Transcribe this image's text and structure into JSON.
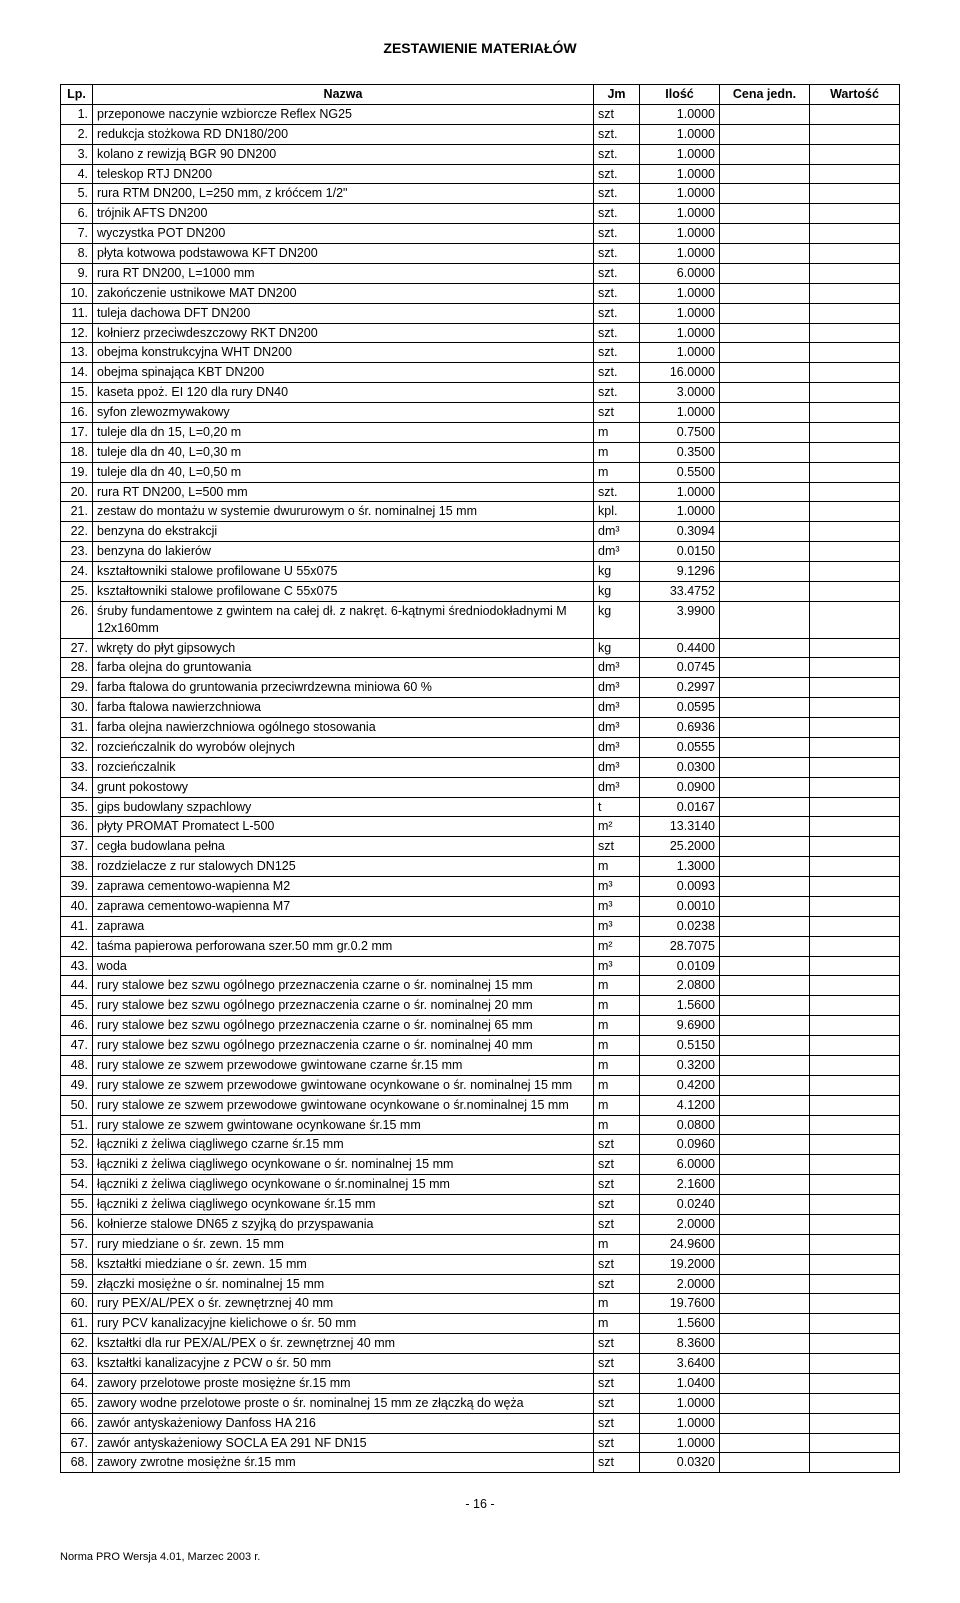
{
  "title": "ZESTAWIENIE MATERIAŁÓW",
  "columns": {
    "lp": "Lp.",
    "name": "Nazwa",
    "jm": "Jm",
    "qty": "Ilość",
    "price": "Cena jedn.",
    "val": "Wartość"
  },
  "page_number": "- 16 -",
  "footer": "Norma PRO Wersja 4.01, Marzec 2003 r.",
  "rows": [
    {
      "lp": "1.",
      "name": "przeponowe naczynie wzbiorcze Reflex NG25",
      "jm": "szt",
      "qty": "1.0000"
    },
    {
      "lp": "2.",
      "name": "redukcja stożkowa RD DN180/200",
      "jm": "szt.",
      "qty": "1.0000"
    },
    {
      "lp": "3.",
      "name": "kolano z rewizją BGR 90 DN200",
      "jm": "szt.",
      "qty": "1.0000"
    },
    {
      "lp": "4.",
      "name": "teleskop RTJ DN200",
      "jm": "szt.",
      "qty": "1.0000"
    },
    {
      "lp": "5.",
      "name": "rura RTM DN200, L=250 mm, z króćcem 1/2\"",
      "jm": "szt.",
      "qty": "1.0000"
    },
    {
      "lp": "6.",
      "name": "trójnik AFTS DN200",
      "jm": "szt.",
      "qty": "1.0000"
    },
    {
      "lp": "7.",
      "name": "wyczystka POT DN200",
      "jm": "szt.",
      "qty": "1.0000"
    },
    {
      "lp": "8.",
      "name": "płyta kotwowa podstawowa KFT DN200",
      "jm": "szt.",
      "qty": "1.0000"
    },
    {
      "lp": "9.",
      "name": "rura RT DN200, L=1000 mm",
      "jm": "szt.",
      "qty": "6.0000"
    },
    {
      "lp": "10.",
      "name": "zakończenie ustnikowe MAT DN200",
      "jm": "szt.",
      "qty": "1.0000"
    },
    {
      "lp": "11.",
      "name": "tuleja dachowa DFT DN200",
      "jm": "szt.",
      "qty": "1.0000"
    },
    {
      "lp": "12.",
      "name": "kołnierz przeciwdeszczowy RKT DN200",
      "jm": "szt.",
      "qty": "1.0000"
    },
    {
      "lp": "13.",
      "name": "obejma konstrukcyjna WHT DN200",
      "jm": "szt.",
      "qty": "1.0000"
    },
    {
      "lp": "14.",
      "name": "obejma spinająca KBT DN200",
      "jm": "szt.",
      "qty": "16.0000"
    },
    {
      "lp": "15.",
      "name": "kaseta ppoż. EI 120 dla rury DN40",
      "jm": "szt.",
      "qty": "3.0000"
    },
    {
      "lp": "16.",
      "name": "syfon zlewozmywakowy",
      "jm": "szt",
      "qty": "1.0000"
    },
    {
      "lp": "17.",
      "name": "tuleje dla dn 15, L=0,20 m",
      "jm": "m",
      "qty": "0.7500"
    },
    {
      "lp": "18.",
      "name": "tuleje dla dn 40, L=0,30 m",
      "jm": "m",
      "qty": "0.3500"
    },
    {
      "lp": "19.",
      "name": "tuleje dla dn 40, L=0,50 m",
      "jm": "m",
      "qty": "0.5500"
    },
    {
      "lp": "20.",
      "name": "rura RT DN200, L=500 mm",
      "jm": "szt.",
      "qty": "1.0000"
    },
    {
      "lp": "21.",
      "name": "zestaw do montażu w systemie dwururowym o śr. nominalnej 15 mm",
      "jm": "kpl.",
      "qty": "1.0000"
    },
    {
      "lp": "22.",
      "name": "benzyna do ekstrakcji",
      "jm": "dm³",
      "qty": "0.3094"
    },
    {
      "lp": "23.",
      "name": "benzyna do lakierów",
      "jm": "dm³",
      "qty": "0.0150"
    },
    {
      "lp": "24.",
      "name": "kształtowniki stalowe profilowane U 55x075",
      "jm": "kg",
      "qty": "9.1296"
    },
    {
      "lp": "25.",
      "name": "kształtowniki stalowe profilowane C 55x075",
      "jm": "kg",
      "qty": "33.4752"
    },
    {
      "lp": "26.",
      "name": "śruby fundamentowe z gwintem na całej dł. z nakręt. 6-kątnymi średniodokładnymi M 12x160mm",
      "jm": "kg",
      "qty": "3.9900"
    },
    {
      "lp": "27.",
      "name": "wkręty do płyt gipsowych",
      "jm": "kg",
      "qty": "0.4400"
    },
    {
      "lp": "28.",
      "name": "farba olejna do gruntowania",
      "jm": "dm³",
      "qty": "0.0745"
    },
    {
      "lp": "29.",
      "name": "farba ftalowa do gruntowania przeciwrdzewna miniowa 60 %",
      "jm": "dm³",
      "qty": "0.2997"
    },
    {
      "lp": "30.",
      "name": "farba ftalowa nawierzchniowa",
      "jm": "dm³",
      "qty": "0.0595"
    },
    {
      "lp": "31.",
      "name": "farba olejna nawierzchniowa ogólnego stosowania",
      "jm": "dm³",
      "qty": "0.6936"
    },
    {
      "lp": "32.",
      "name": "rozcieńczalnik do wyrobów olejnych",
      "jm": "dm³",
      "qty": "0.0555"
    },
    {
      "lp": "33.",
      "name": "rozcieńczalnik",
      "jm": "dm³",
      "qty": "0.0300"
    },
    {
      "lp": "34.",
      "name": "grunt pokostowy",
      "jm": "dm³",
      "qty": "0.0900"
    },
    {
      "lp": "35.",
      "name": "gips budowlany szpachlowy",
      "jm": "t",
      "qty": "0.0167"
    },
    {
      "lp": "36.",
      "name": "płyty PROMAT Promatect L-500",
      "jm": "m²",
      "qty": "13.3140"
    },
    {
      "lp": "37.",
      "name": "cegła budowlana pełna",
      "jm": "szt",
      "qty": "25.2000"
    },
    {
      "lp": "38.",
      "name": "rozdzielacze z rur stalowych DN125",
      "jm": "m",
      "qty": "1.3000"
    },
    {
      "lp": "39.",
      "name": "zaprawa cementowo-wapienna M2",
      "jm": "m³",
      "qty": "0.0093"
    },
    {
      "lp": "40.",
      "name": "zaprawa cementowo-wapienna M7",
      "jm": "m³",
      "qty": "0.0010"
    },
    {
      "lp": "41.",
      "name": "zaprawa",
      "jm": "m³",
      "qty": "0.0238"
    },
    {
      "lp": "42.",
      "name": "taśma papierowa perforowana szer.50 mm gr.0.2 mm",
      "jm": "m²",
      "qty": "28.7075"
    },
    {
      "lp": "43.",
      "name": "woda",
      "jm": "m³",
      "qty": "0.0109"
    },
    {
      "lp": "44.",
      "name": "rury stalowe bez szwu ogólnego przeznaczenia czarne o śr. nominalnej 15 mm",
      "jm": "m",
      "qty": "2.0800"
    },
    {
      "lp": "45.",
      "name": "rury stalowe bez szwu ogólnego przeznaczenia czarne o śr. nominalnej 20 mm",
      "jm": "m",
      "qty": "1.5600"
    },
    {
      "lp": "46.",
      "name": "rury stalowe bez szwu ogólnego przeznaczenia czarne o śr. nominalnej 65 mm",
      "jm": "m",
      "qty": "9.6900"
    },
    {
      "lp": "47.",
      "name": "rury stalowe bez szwu ogólnego przeznaczenia czarne o śr. nominalnej 40 mm",
      "jm": "m",
      "qty": "0.5150"
    },
    {
      "lp": "48.",
      "name": "rury stalowe ze szwem przewodowe gwintowane czarne śr.15 mm",
      "jm": "m",
      "qty": "0.3200"
    },
    {
      "lp": "49.",
      "name": "rury stalowe ze szwem przewodowe gwintowane ocynkowane o śr. nominalnej 15 mm",
      "jm": "m",
      "qty": "0.4200"
    },
    {
      "lp": "50.",
      "name": "rury stalowe ze szwem przewodowe gwintowane ocynkowane o śr.nominalnej 15 mm",
      "jm": "m",
      "qty": "4.1200"
    },
    {
      "lp": "51.",
      "name": "rury stalowe ze szwem gwintowane ocynkowane śr.15 mm",
      "jm": "m",
      "qty": "0.0800"
    },
    {
      "lp": "52.",
      "name": "łączniki z żeliwa ciągliwego czarne śr.15 mm",
      "jm": "szt",
      "qty": "0.0960"
    },
    {
      "lp": "53.",
      "name": "łączniki z żeliwa ciągliwego ocynkowane o śr. nominalnej 15 mm",
      "jm": "szt",
      "qty": "6.0000"
    },
    {
      "lp": "54.",
      "name": "łączniki z żeliwa ciągliwego ocynkowane o śr.nominalnej 15 mm",
      "jm": "szt",
      "qty": "2.1600"
    },
    {
      "lp": "55.",
      "name": "łączniki z żeliwa ciągliwego ocynkowane śr.15 mm",
      "jm": "szt",
      "qty": "0.0240"
    },
    {
      "lp": "56.",
      "name": "kołnierze stalowe DN65 z szyjką do przyspawania",
      "jm": "szt",
      "qty": "2.0000"
    },
    {
      "lp": "57.",
      "name": "rury miedziane o śr. zewn. 15 mm",
      "jm": "m",
      "qty": "24.9600"
    },
    {
      "lp": "58.",
      "name": "kształtki miedziane o śr. zewn. 15 mm",
      "jm": "szt",
      "qty": "19.2000"
    },
    {
      "lp": "59.",
      "name": "złączki mosiężne o śr. nominalnej 15 mm",
      "jm": "szt",
      "qty": "2.0000"
    },
    {
      "lp": "60.",
      "name": "rury PEX/AL/PEX o śr. zewnętrznej 40 mm",
      "jm": "m",
      "qty": "19.7600"
    },
    {
      "lp": "61.",
      "name": "rury PCV kanalizacyjne kielichowe o śr. 50 mm",
      "jm": "m",
      "qty": "1.5600"
    },
    {
      "lp": "62.",
      "name": "kształtki dla rur PEX/AL/PEX o śr. zewnętrznej 40 mm",
      "jm": "szt",
      "qty": "8.3600"
    },
    {
      "lp": "63.",
      "name": "kształtki kanalizacyjne z PCW o śr. 50 mm",
      "jm": "szt",
      "qty": "3.6400"
    },
    {
      "lp": "64.",
      "name": "zawory przelotowe proste mosiężne śr.15 mm",
      "jm": "szt",
      "qty": "1.0400"
    },
    {
      "lp": "65.",
      "name": "zawory wodne przelotowe proste o śr. nominalnej 15 mm ze złączką do węża",
      "jm": "szt",
      "qty": "1.0000"
    },
    {
      "lp": "66.",
      "name": "zawór antyskażeniowy Danfoss HA 216",
      "jm": "szt",
      "qty": "1.0000"
    },
    {
      "lp": "67.",
      "name": "zawór antyskażeniowy SOCLA EA 291 NF DN15",
      "jm": "szt",
      "qty": "1.0000"
    },
    {
      "lp": "68.",
      "name": "zawory zwrotne mosiężne śr.15 mm",
      "jm": "szt",
      "qty": "0.0320"
    }
  ]
}
